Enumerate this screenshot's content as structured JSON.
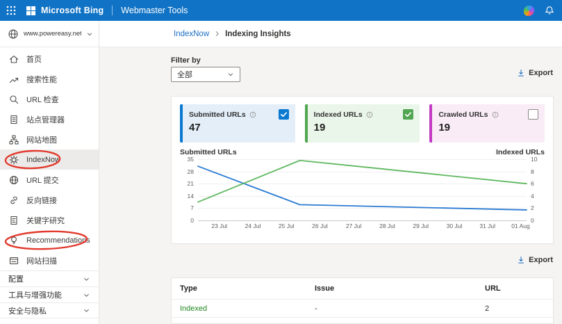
{
  "header": {
    "brand": "Microsoft Bing",
    "product": "Webmaster Tools"
  },
  "site": {
    "url": "www.powereasy.net/"
  },
  "breadcrumb": {
    "parent": "IndexNow",
    "current": "Indexing Insights"
  },
  "sidebar": {
    "items": [
      {
        "id": "home",
        "label": "首页",
        "icon": "home"
      },
      {
        "id": "search-performance",
        "label": "搜索性能",
        "icon": "trend"
      },
      {
        "id": "url-inspection",
        "label": "URL 检查",
        "icon": "search"
      },
      {
        "id": "site-explorer",
        "label": "站点管理器",
        "icon": "document"
      },
      {
        "id": "sitemaps",
        "label": "网站地图",
        "icon": "sitemap"
      },
      {
        "id": "indexnow",
        "label": "IndexNow",
        "icon": "gear",
        "selected": true,
        "annotated": true
      },
      {
        "id": "url-submission",
        "label": "URL 提交",
        "icon": "globe"
      },
      {
        "id": "backlinks",
        "label": "反向链接",
        "icon": "link"
      },
      {
        "id": "keyword-research",
        "label": "关键字研究",
        "icon": "keyword"
      },
      {
        "id": "recommendations",
        "label": "Recommendations",
        "icon": "bulb",
        "annotated": true
      },
      {
        "id": "site-scan",
        "label": "网站扫描",
        "icon": "scan"
      }
    ],
    "sections": [
      {
        "id": "configuration",
        "label": "配置"
      },
      {
        "id": "tools-enhancements",
        "label": "工具与增强功能"
      },
      {
        "id": "security-privacy",
        "label": "安全与隐私"
      }
    ]
  },
  "filter": {
    "label": "Filter by",
    "value": "全部"
  },
  "export_label": "Export",
  "cards": [
    {
      "id": "submitted-urls",
      "title": "Submitted URLs",
      "value": "47",
      "checked": true,
      "accent": "#0b79d0",
      "bg": "#e3eef9",
      "check_bg": "#0b79d0"
    },
    {
      "id": "indexed-urls",
      "title": "Indexed URLs",
      "value": "19",
      "checked": true,
      "accent": "#52a552",
      "bg": "#eaf6ea",
      "check_bg": "#52a552"
    },
    {
      "id": "crawled-urls",
      "title": "Crawled URLs",
      "value": "19",
      "checked": false,
      "accent": "#c23bc2",
      "bg": "#f9ecf7",
      "check_bg": ""
    }
  ],
  "chart_data": {
    "type": "line",
    "left_axis": {
      "title": "Submitted URLs",
      "ticks": [
        35,
        28,
        21,
        14,
        7,
        0
      ],
      "range": [
        0,
        35
      ]
    },
    "right_axis": {
      "title": "Indexed URLs",
      "ticks": [
        10,
        8,
        6,
        4,
        2,
        0
      ],
      "range": [
        0,
        10
      ]
    },
    "x_ticks": [
      "23 Jul",
      "24 Jul",
      "25 Jul",
      "26 Jul",
      "27 Jul",
      "28 Jul",
      "29 Jul",
      "30 Jul",
      "31 Jul",
      "01 Aug"
    ],
    "x_tick_pos": [
      6.5,
      16.7,
      26.9,
      37.1,
      47.4,
      57.6,
      67.8,
      78.0,
      88.1,
      98.2
    ],
    "grid": "horizontal-only",
    "series": [
      {
        "name": "Submitted URLs",
        "axis": "left",
        "color": "#2b7bd3",
        "points": [
          [
            0,
            31
          ],
          [
            31,
            9
          ],
          [
            100,
            6
          ]
        ]
      },
      {
        "name": "Indexed URLs",
        "axis": "right",
        "color": "#5fb75f",
        "points": [
          [
            0,
            3
          ],
          [
            31,
            9.8
          ],
          [
            100,
            6
          ]
        ]
      }
    ]
  },
  "table": {
    "headers": [
      "Type",
      "Issue",
      "URL"
    ],
    "rows": [
      {
        "type": "Indexed",
        "issue": "-",
        "url": "2"
      }
    ]
  },
  "colors": {
    "header_bg": "#1173c5",
    "link_blue": "#1b6ec2",
    "annotation_red": "#e23a2e",
    "indexed_green": "#218721",
    "line_blue": "#2b7bd3",
    "line_green": "#5fb75f"
  }
}
